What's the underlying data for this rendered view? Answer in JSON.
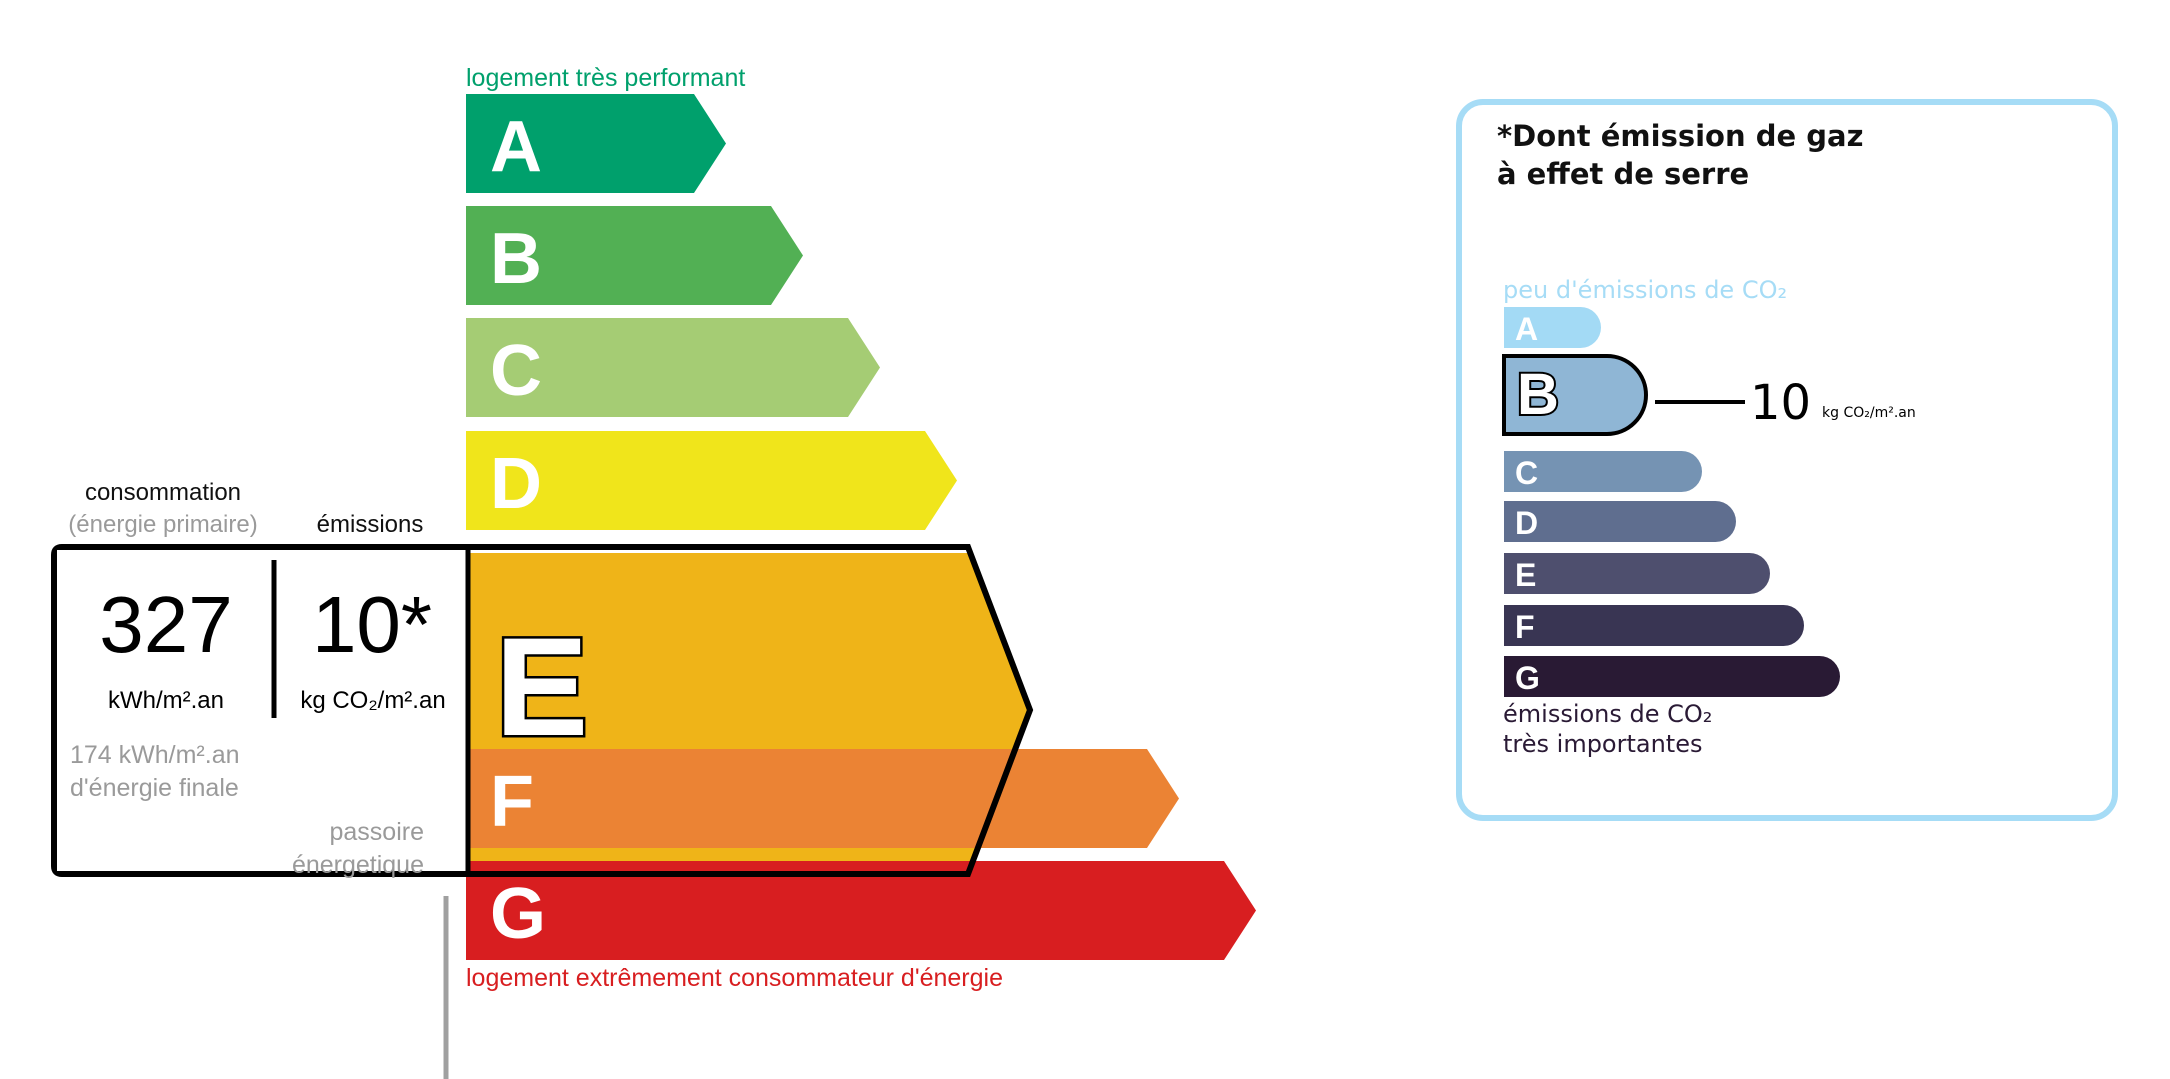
{
  "energy": {
    "top_label": "logement très performant",
    "bottom_label": "logement extrêmement consommateur d'énergie",
    "classes": [
      {
        "letter": "A",
        "color": "#00a06c"
      },
      {
        "letter": "B",
        "color": "#52b054"
      },
      {
        "letter": "C",
        "color": "#a5cc74"
      },
      {
        "letter": "D",
        "color": "#f0e51b"
      },
      {
        "letter": "E",
        "color": "#efb418"
      },
      {
        "letter": "F",
        "color": "#eb8334"
      },
      {
        "letter": "G",
        "color": "#d81e20"
      }
    ],
    "current_class": "E",
    "consumption_label": "consommation",
    "consumption_sublabel": "(énergie primaire)",
    "emissions_label": "émissions",
    "consumption_value": "327",
    "consumption_unit": "kWh/m².an",
    "emissions_value": "10*",
    "emissions_unit": "kg CO₂/m².an",
    "final_energy_value": "174 kWh/m².an",
    "final_energy_label": "d'énergie finale",
    "passoire_line1": "passoire",
    "passoire_line2": "énergetique"
  },
  "ghg": {
    "title_line1": "*Dont émission de gaz",
    "title_line2": "à effet de serre",
    "top_label": "peu d'émissions de CO₂",
    "bottom_line1": "émissions de CO₂",
    "bottom_line2": "très importantes",
    "classes": [
      {
        "letter": "A",
        "color": "#a3daf5"
      },
      {
        "letter": "B",
        "color": "#8fb6d5"
      },
      {
        "letter": "C",
        "color": "#7593b3"
      },
      {
        "letter": "D",
        "color": "#5f6e8f"
      },
      {
        "letter": "E",
        "color": "#4e4f6e"
      },
      {
        "letter": "F",
        "color": "#393553"
      },
      {
        "letter": "G",
        "color": "#291a34"
      }
    ],
    "current_class": "B",
    "value": "10",
    "unit": "kg CO₂/m².an",
    "border_color": "#a6dcf6"
  }
}
